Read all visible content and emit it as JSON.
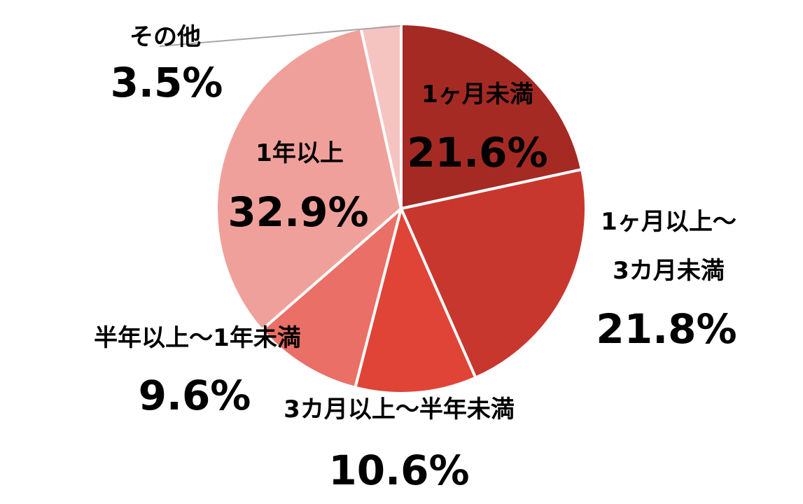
{
  "chart_data": {
    "type": "pie",
    "slices": [
      {
        "label": "1ヶ月未満",
        "label_lines": [
          "1ヶ月未満"
        ],
        "value": 21.6,
        "value_label": "21.6%",
        "color": "#A52A24",
        "label_color": "#ffffff"
      },
      {
        "label": "1ヶ月以上～3カ月未満",
        "label_lines": [
          "1ヶ月以上～",
          "3カ月未満"
        ],
        "value": 21.8,
        "value_label": "21.8%",
        "color": "#C8372E",
        "label_color": "#000000"
      },
      {
        "label": "3カ月以上～半年未満",
        "label_lines": [
          "3カ月以上～半年未満"
        ],
        "value": 10.6,
        "value_label": "10.6%",
        "color": "#E04437",
        "label_color": "#000000"
      },
      {
        "label": "半年以上～1年未満",
        "label_lines": [
          "半年以上～1年未満"
        ],
        "value": 9.6,
        "value_label": "9.6%",
        "color": "#EA6F66",
        "label_color": "#000000"
      },
      {
        "label": "1年以上",
        "label_lines": [
          "1年以上"
        ],
        "value": 32.9,
        "value_label": "32.9%",
        "color": "#F0A09A",
        "label_color": "#000000"
      },
      {
        "label": "その他",
        "label_lines": [
          "その他"
        ],
        "value": 3.5,
        "value_label": "3.5%",
        "color": "#F5C4C1",
        "label_color": "#000000"
      }
    ],
    "start_angle": "12 o'clock",
    "direction": "clockwise",
    "legend": "none"
  }
}
